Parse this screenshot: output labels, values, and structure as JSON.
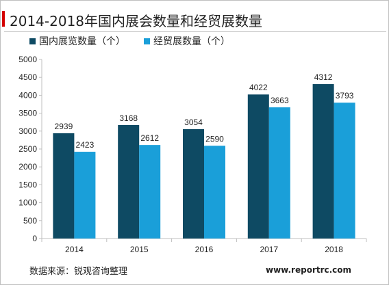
{
  "page": {
    "title": "2014-2018年国内展会数量和经贸展数量",
    "source": "数据来源：锐观咨询整理",
    "website": "www.reportrc.com"
  },
  "colors": {
    "accent_red": "#d40000",
    "series_domestic": "#0e4a63",
    "series_trade": "#1a9fd9",
    "axis": "#bfbfbf",
    "text": "#222222"
  },
  "chart_data": {
    "type": "bar",
    "categories": [
      "2014",
      "2015",
      "2016",
      "2017",
      "2018"
    ],
    "series": [
      {
        "name": "国内展览数量（个）",
        "values": [
          2939,
          3168,
          3054,
          4022,
          4312
        ],
        "color": "#0e4a63"
      },
      {
        "name": "经贸展数量（个）",
        "values": [
          2423,
          2612,
          2590,
          3663,
          3793
        ],
        "color": "#1a9fd9"
      }
    ],
    "title": "2014-2018年国内展会数量和经贸展数量",
    "xlabel": "",
    "ylabel": "",
    "ylim": [
      0,
      5000
    ],
    "yticks": [
      0,
      500,
      1000,
      1500,
      2000,
      2500,
      3000,
      3500,
      4000,
      4500,
      5000
    ],
    "grid": false,
    "legend_position": "top-left",
    "data_labels": true
  }
}
